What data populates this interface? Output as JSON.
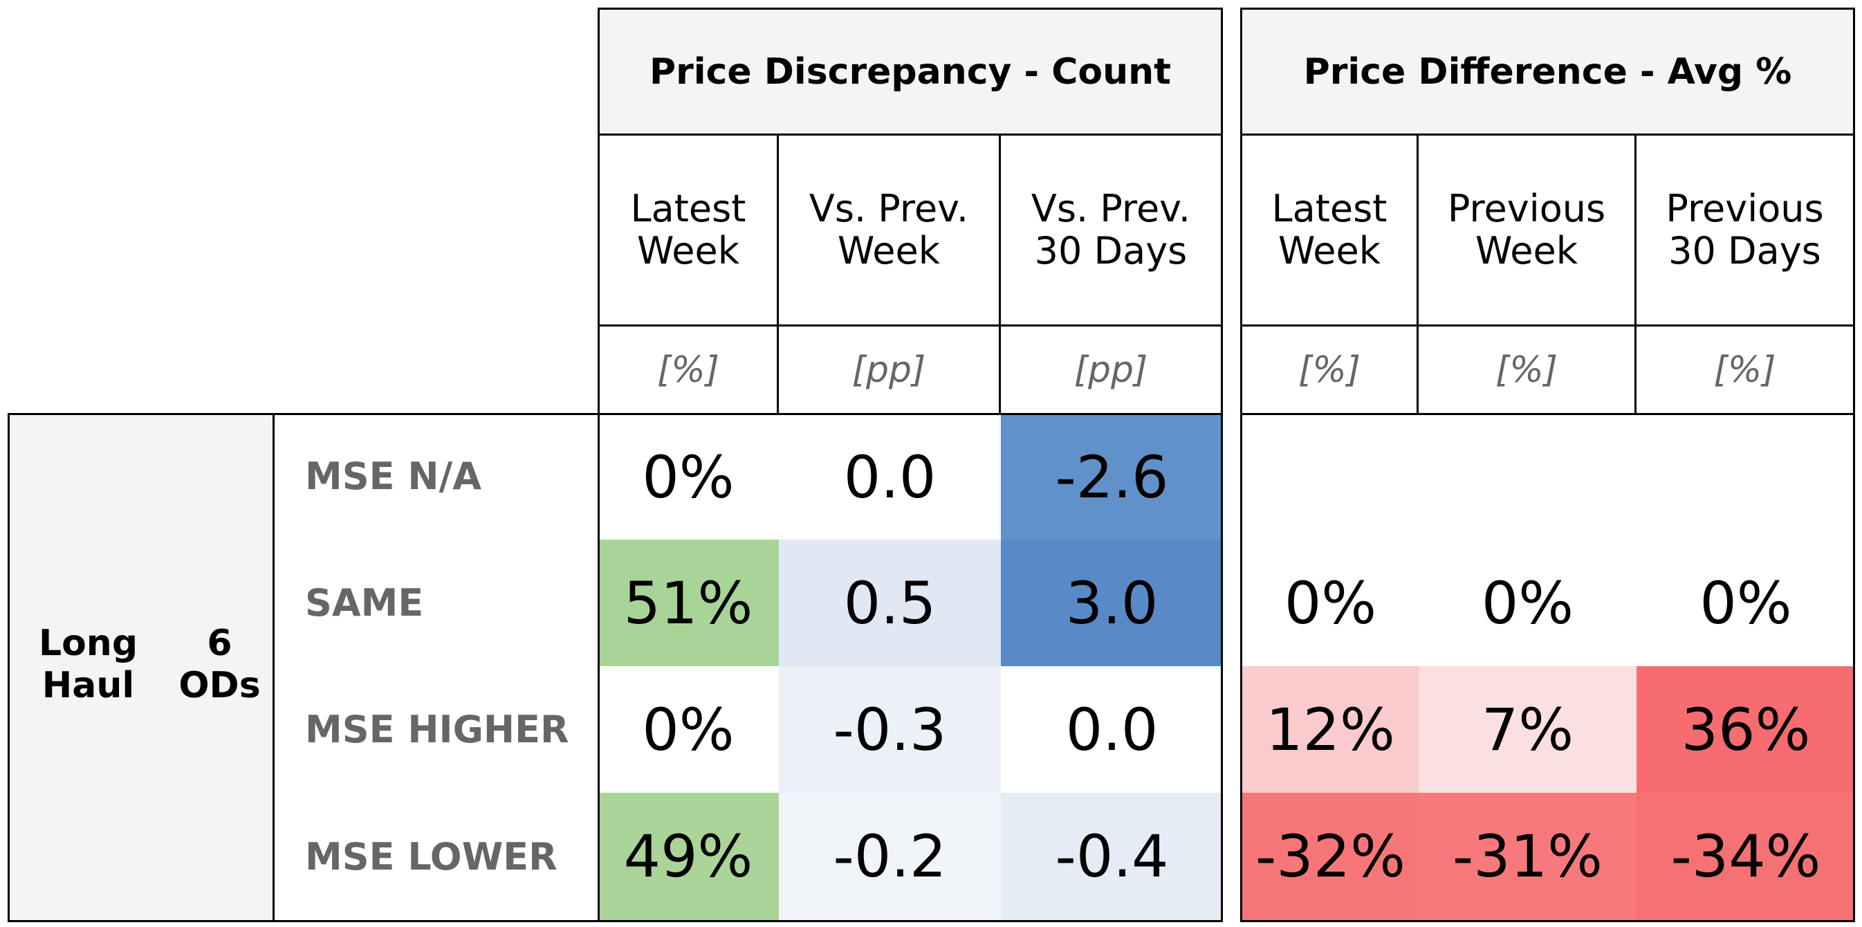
{
  "chart_data": {
    "type": "table",
    "column_groups": [
      {
        "title": "Price Discrepancy - Count",
        "columns": [
          {
            "label": "Latest\nWeek",
            "unit": "[%]"
          },
          {
            "label": "Vs. Prev.\nWeek",
            "unit": "[pp]"
          },
          {
            "label": "Vs. Prev.\n30 Days",
            "unit": "[pp]"
          }
        ]
      },
      {
        "title": "Price Difference - Avg %",
        "columns": [
          {
            "label": "Latest\nWeek",
            "unit": "[%]"
          },
          {
            "label": "Previous\nWeek",
            "unit": "[%]"
          },
          {
            "label": "Previous\n30 Days",
            "unit": "[%]"
          }
        ]
      }
    ],
    "row_group": {
      "label_a": "Long\nHaul",
      "label_b": "6\nODs"
    },
    "rows": [
      {
        "label": "MSE N/A",
        "cells": [
          {
            "text": "0%",
            "color": "#ffffff"
          },
          {
            "text": "0.0",
            "color": "#ffffff"
          },
          {
            "text": "-2.6",
            "color": "#6191cb"
          },
          {
            "text": "",
            "color": "#ffffff"
          },
          {
            "text": "",
            "color": "#ffffff"
          },
          {
            "text": "",
            "color": "#ffffff"
          }
        ]
      },
      {
        "label": "SAME",
        "cells": [
          {
            "text": "51%",
            "color": "#a9d498"
          },
          {
            "text": "0.5",
            "color": "#e0e8f4"
          },
          {
            "text": "3.0",
            "color": "#5a89c7"
          },
          {
            "text": "0%",
            "color": "#ffffff"
          },
          {
            "text": "0%",
            "color": "#ffffff"
          },
          {
            "text": "0%",
            "color": "#ffffff"
          }
        ]
      },
      {
        "label": "MSE HIGHER",
        "cells": [
          {
            "text": "0%",
            "color": "#ffffff"
          },
          {
            "text": "-0.3",
            "color": "#ecf1f8"
          },
          {
            "text": "0.0",
            "color": "#ffffff"
          },
          {
            "text": "12%",
            "color": "#f9cbcc"
          },
          {
            "text": "7%",
            "color": "#fbdfe1"
          },
          {
            "text": "36%",
            "color": "#f66c70"
          }
        ]
      },
      {
        "label": "MSE LOWER",
        "cells": [
          {
            "text": "49%",
            "color": "#aad498"
          },
          {
            "text": "-0.2",
            "color": "#f1f5fa"
          },
          {
            "text": "-0.4",
            "color": "#e5ecf6"
          },
          {
            "text": "-32%",
            "color": "#f67679"
          },
          {
            "text": "-31%",
            "color": "#f7797c"
          },
          {
            "text": "-34%",
            "color": "#f57174"
          }
        ]
      }
    ]
  }
}
